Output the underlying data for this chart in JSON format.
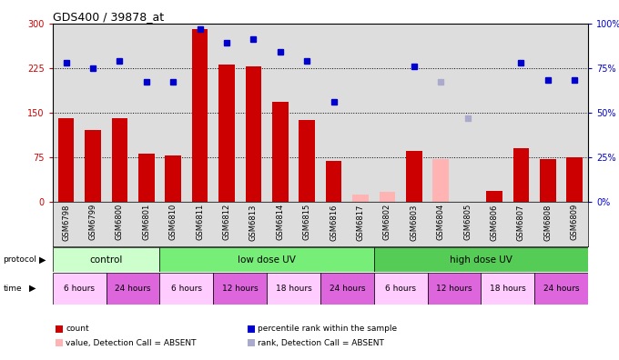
{
  "title": "GDS400 / 39878_at",
  "samples": [
    "GSM6798",
    "GSM6799",
    "GSM6800",
    "GSM6801",
    "GSM6810",
    "GSM6811",
    "GSM6812",
    "GSM6813",
    "GSM6814",
    "GSM6815",
    "GSM6816",
    "GSM6817",
    "GSM6802",
    "GSM6803",
    "GSM6804",
    "GSM6805",
    "GSM6806",
    "GSM6807",
    "GSM6808",
    "GSM6809"
  ],
  "count_values": [
    140,
    120,
    140,
    80,
    78,
    290,
    230,
    228,
    168,
    138,
    68,
    null,
    null,
    85,
    null,
    null,
    18,
    90,
    72,
    74
  ],
  "count_absent": [
    null,
    null,
    null,
    null,
    null,
    null,
    null,
    null,
    null,
    null,
    null,
    12,
    17,
    null,
    72,
    null,
    null,
    null,
    null,
    null
  ],
  "rank_values": [
    78,
    75,
    79,
    67,
    67,
    97,
    89,
    91,
    84,
    79,
    56,
    null,
    null,
    76,
    null,
    null,
    null,
    78,
    68,
    68
  ],
  "rank_absent": [
    null,
    null,
    null,
    null,
    null,
    null,
    null,
    null,
    null,
    null,
    null,
    null,
    null,
    null,
    67,
    47,
    null,
    null,
    null,
    null
  ],
  "ylim_left": [
    0,
    300
  ],
  "ylim_right": [
    0,
    100
  ],
  "yticks_left": [
    0,
    75,
    150,
    225,
    300
  ],
  "ytick_labels_left": [
    "0",
    "75",
    "150",
    "225",
    "300"
  ],
  "yticks_right": [
    0,
    25,
    50,
    75,
    100
  ],
  "ytick_labels_right": [
    "0%",
    "25%",
    "50%",
    "75%",
    "100%"
  ],
  "hlines": [
    75,
    150,
    225
  ],
  "bar_color": "#CC0000",
  "bar_absent_color": "#FFB3B3",
  "rank_color": "#0000CC",
  "rank_absent_color": "#AAAACC",
  "bg_color": "#DDDDDD",
  "proto_groups": [
    {
      "label": "control",
      "start": 0,
      "end": 4,
      "color": "#CCFFCC"
    },
    {
      "label": "low dose UV",
      "start": 4,
      "end": 12,
      "color": "#77EE77"
    },
    {
      "label": "high dose UV",
      "start": 12,
      "end": 20,
      "color": "#55CC55"
    }
  ],
  "time_groups": [
    {
      "label": "6 hours",
      "start": 0,
      "end": 2,
      "color": "#FFCCFF"
    },
    {
      "label": "24 hours",
      "start": 2,
      "end": 4,
      "color": "#DD66DD"
    },
    {
      "label": "6 hours",
      "start": 4,
      "end": 6,
      "color": "#FFCCFF"
    },
    {
      "label": "12 hours",
      "start": 6,
      "end": 8,
      "color": "#DD66DD"
    },
    {
      "label": "18 hours",
      "start": 8,
      "end": 10,
      "color": "#FFCCFF"
    },
    {
      "label": "24 hours",
      "start": 10,
      "end": 12,
      "color": "#DD66DD"
    },
    {
      "label": "6 hours",
      "start": 12,
      "end": 14,
      "color": "#FFCCFF"
    },
    {
      "label": "12 hours",
      "start": 14,
      "end": 16,
      "color": "#DD66DD"
    },
    {
      "label": "18 hours",
      "start": 16,
      "end": 18,
      "color": "#FFCCFF"
    },
    {
      "label": "24 hours",
      "start": 18,
      "end": 20,
      "color": "#DD66DD"
    }
  ],
  "legend_items": [
    {
      "label": "count",
      "color": "#CC0000"
    },
    {
      "label": "percentile rank within the sample",
      "color": "#0000CC"
    },
    {
      "label": "value, Detection Call = ABSENT",
      "color": "#FFB3B3"
    },
    {
      "label": "rank, Detection Call = ABSENT",
      "color": "#AAAACC"
    }
  ]
}
